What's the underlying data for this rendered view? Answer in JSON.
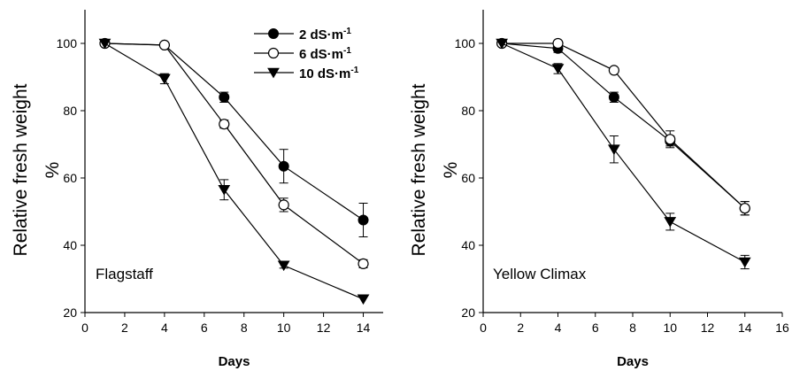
{
  "chart_data": [
    {
      "type": "line",
      "panel_label": "Flagstaff",
      "xlabel": "Days",
      "ylabel_line1": "Relative fresh weight",
      "ylabel_line2": "%",
      "xlim": [
        0,
        15
      ],
      "ylim": [
        20,
        110
      ],
      "xticks": [
        0,
        2,
        4,
        6,
        8,
        10,
        12,
        14
      ],
      "yticks": [
        20,
        40,
        60,
        80,
        100
      ],
      "show_legend": true,
      "legend_position": "top-right",
      "series": [
        {
          "name": "2 dS·m⁻¹",
          "marker": "filled-circle",
          "x": [
            1,
            4,
            7,
            10,
            14
          ],
          "y": [
            100,
            99.5,
            84,
            63.5,
            47.5
          ],
          "err": [
            0.5,
            0.5,
            1.5,
            5,
            5
          ]
        },
        {
          "name": "6 dS·m⁻¹",
          "marker": "open-circle",
          "x": [
            1,
            4,
            7,
            10,
            14
          ],
          "y": [
            100,
            99.5,
            76,
            52,
            34.5
          ],
          "err": [
            0.5,
            0.5,
            1.2,
            2,
            1.2
          ]
        },
        {
          "name": "10 dS·m⁻¹",
          "marker": "filled-triangle-down",
          "x": [
            1,
            4,
            7,
            10,
            14
          ],
          "y": [
            100,
            89.5,
            56.5,
            34,
            24
          ],
          "err": [
            0.5,
            1.5,
            3,
            0.8,
            0.5
          ]
        }
      ]
    },
    {
      "type": "line",
      "panel_label": "Yellow Climax",
      "xlabel": "Days",
      "ylabel_line1": "Relative fresh weight",
      "ylabel_line2": "%",
      "xlim": [
        0,
        16
      ],
      "ylim": [
        20,
        110
      ],
      "xticks": [
        0,
        2,
        4,
        6,
        8,
        10,
        12,
        14,
        16
      ],
      "yticks": [
        20,
        40,
        60,
        80,
        100
      ],
      "show_legend": false,
      "series": [
        {
          "name": "2 dS·m⁻¹",
          "marker": "filled-circle",
          "x": [
            1,
            4,
            7,
            10,
            14
          ],
          "y": [
            100,
            98.5,
            84,
            71,
            51
          ],
          "err": [
            0.5,
            1.2,
            1.5,
            1.5,
            2
          ]
        },
        {
          "name": "6 dS·m⁻¹",
          "marker": "open-circle",
          "x": [
            1,
            4,
            7,
            10,
            14
          ],
          "y": [
            100,
            100,
            92,
            71.5,
            51
          ],
          "err": [
            0.5,
            0.5,
            0.5,
            2.5,
            2
          ]
        },
        {
          "name": "10 dS·m⁻¹",
          "marker": "filled-triangle-down",
          "x": [
            1,
            4,
            7,
            10,
            14
          ],
          "y": [
            100,
            92.5,
            68.5,
            47,
            35
          ],
          "err": [
            0.5,
            1.5,
            4,
            2.5,
            2
          ]
        }
      ]
    }
  ]
}
